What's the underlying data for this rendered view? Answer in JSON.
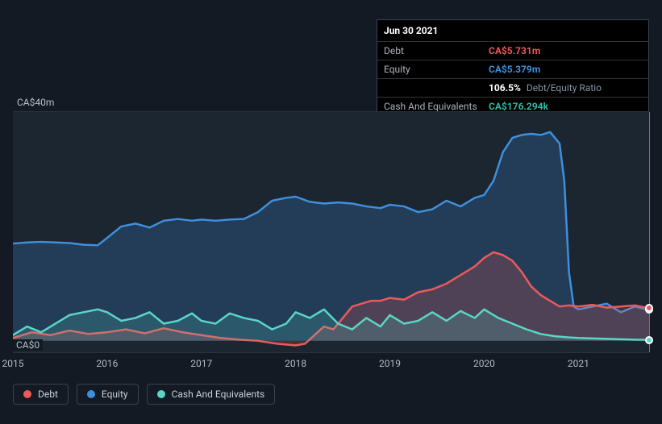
{
  "tooltip": {
    "date": "Jun 30 2021",
    "rows": [
      {
        "label": "Debt",
        "value": "CA$5.731m",
        "color": "#eb5a5a"
      },
      {
        "label": "Equity",
        "value": "CA$5.379m",
        "color": "#3f8fdd"
      },
      {
        "label": "",
        "value": "106.5%",
        "sub": "Debt/Equity Ratio",
        "color": "#ffffff"
      },
      {
        "label": "Cash And Equivalents",
        "value": "CA$176.294k",
        "color": "#2fb9a3"
      }
    ]
  },
  "chart": {
    "y_top_label": "CA$40m",
    "y_bottom_label": "CA$0",
    "x_min": 2015,
    "x_max": 2021.75,
    "y_min": -2,
    "y_max": 40,
    "x_ticks": [
      2015,
      2016,
      2017,
      2018,
      2019,
      2020,
      2021
    ],
    "plot_bg": "#1b2631",
    "series": [
      {
        "name": "Equity",
        "color": "#3f8fdd",
        "fill": "rgba(63,143,221,0.22)",
        "data": [
          [
            2015,
            17.0
          ],
          [
            2015.15,
            17.2
          ],
          [
            2015.3,
            17.3
          ],
          [
            2015.45,
            17.2
          ],
          [
            2015.6,
            17.1
          ],
          [
            2015.75,
            16.8
          ],
          [
            2015.9,
            16.7
          ],
          [
            2016,
            18.0
          ],
          [
            2016.15,
            20.0
          ],
          [
            2016.3,
            20.5
          ],
          [
            2016.45,
            19.8
          ],
          [
            2016.6,
            21.0
          ],
          [
            2016.75,
            21.3
          ],
          [
            2016.9,
            21.0
          ],
          [
            2017,
            21.2
          ],
          [
            2017.15,
            21.0
          ],
          [
            2017.3,
            21.2
          ],
          [
            2017.45,
            21.3
          ],
          [
            2017.6,
            22.5
          ],
          [
            2017.75,
            24.5
          ],
          [
            2017.9,
            25.0
          ],
          [
            2018,
            25.2
          ],
          [
            2018.15,
            24.3
          ],
          [
            2018.3,
            24.0
          ],
          [
            2018.45,
            24.2
          ],
          [
            2018.6,
            24.0
          ],
          [
            2018.75,
            23.5
          ],
          [
            2018.9,
            23.2
          ],
          [
            2019,
            23.8
          ],
          [
            2019.15,
            23.5
          ],
          [
            2019.3,
            22.5
          ],
          [
            2019.45,
            23.0
          ],
          [
            2019.6,
            24.5
          ],
          [
            2019.75,
            23.5
          ],
          [
            2019.9,
            25.0
          ],
          [
            2020,
            25.5
          ],
          [
            2020.1,
            28.0
          ],
          [
            2020.2,
            33.0
          ],
          [
            2020.3,
            35.5
          ],
          [
            2020.4,
            36.0
          ],
          [
            2020.5,
            36.2
          ],
          [
            2020.6,
            36.0
          ],
          [
            2020.7,
            36.5
          ],
          [
            2020.8,
            34.5
          ],
          [
            2020.85,
            28.0
          ],
          [
            2020.9,
            12.0
          ],
          [
            2020.95,
            6.0
          ],
          [
            2021,
            5.5
          ],
          [
            2021.15,
            6.0
          ],
          [
            2021.3,
            6.5
          ],
          [
            2021.45,
            5.0
          ],
          [
            2021.6,
            6.0
          ],
          [
            2021.75,
            5.4
          ]
        ]
      },
      {
        "name": "Debt",
        "color": "#eb5a5a",
        "fill": "rgba(235,90,90,0.22)",
        "data": [
          [
            2015,
            0.5
          ],
          [
            2015.2,
            1.5
          ],
          [
            2015.4,
            1.0
          ],
          [
            2015.6,
            1.8
          ],
          [
            2015.8,
            1.2
          ],
          [
            2016,
            1.5
          ],
          [
            2016.2,
            2.0
          ],
          [
            2016.4,
            1.3
          ],
          [
            2016.6,
            2.2
          ],
          [
            2016.8,
            1.5
          ],
          [
            2017,
            1.0
          ],
          [
            2017.2,
            0.5
          ],
          [
            2017.4,
            0.2
          ],
          [
            2017.6,
            0.0
          ],
          [
            2017.8,
            -0.5
          ],
          [
            2018,
            -0.8
          ],
          [
            2018.1,
            -0.5
          ],
          [
            2018.2,
            1.0
          ],
          [
            2018.3,
            2.5
          ],
          [
            2018.4,
            2.0
          ],
          [
            2018.5,
            4.0
          ],
          [
            2018.6,
            6.0
          ],
          [
            2018.7,
            6.5
          ],
          [
            2018.8,
            7.0
          ],
          [
            2018.9,
            7.0
          ],
          [
            2019,
            7.5
          ],
          [
            2019.15,
            7.2
          ],
          [
            2019.3,
            8.5
          ],
          [
            2019.45,
            9.0
          ],
          [
            2019.6,
            10.0
          ],
          [
            2019.75,
            11.5
          ],
          [
            2019.9,
            13.0
          ],
          [
            2020,
            14.5
          ],
          [
            2020.1,
            15.5
          ],
          [
            2020.2,
            15.0
          ],
          [
            2020.3,
            14.0
          ],
          [
            2020.4,
            12.0
          ],
          [
            2020.5,
            9.5
          ],
          [
            2020.6,
            8.0
          ],
          [
            2020.7,
            7.0
          ],
          [
            2020.8,
            6.0
          ],
          [
            2020.9,
            6.2
          ],
          [
            2021,
            6.0
          ],
          [
            2021.15,
            6.3
          ],
          [
            2021.3,
            5.8
          ],
          [
            2021.45,
            6.0
          ],
          [
            2021.6,
            6.2
          ],
          [
            2021.75,
            5.7
          ]
        ]
      },
      {
        "name": "Cash And Equivalents",
        "color": "#5ad6c6",
        "fill": "rgba(90,214,198,0.18)",
        "data": [
          [
            2015,
            1.0
          ],
          [
            2015.15,
            2.5
          ],
          [
            2015.3,
            1.5
          ],
          [
            2015.45,
            3.0
          ],
          [
            2015.6,
            4.5
          ],
          [
            2015.75,
            5.0
          ],
          [
            2015.9,
            5.5
          ],
          [
            2016,
            5.0
          ],
          [
            2016.15,
            3.5
          ],
          [
            2016.3,
            4.0
          ],
          [
            2016.45,
            5.0
          ],
          [
            2016.6,
            3.0
          ],
          [
            2016.75,
            3.5
          ],
          [
            2016.9,
            4.8
          ],
          [
            2017,
            3.5
          ],
          [
            2017.15,
            3.0
          ],
          [
            2017.3,
            4.8
          ],
          [
            2017.45,
            4.0
          ],
          [
            2017.6,
            3.5
          ],
          [
            2017.75,
            2.0
          ],
          [
            2017.9,
            3.0
          ],
          [
            2018,
            5.0
          ],
          [
            2018.15,
            4.0
          ],
          [
            2018.3,
            5.5
          ],
          [
            2018.45,
            3.0
          ],
          [
            2018.6,
            2.0
          ],
          [
            2018.75,
            4.0
          ],
          [
            2018.9,
            2.5
          ],
          [
            2019,
            4.5
          ],
          [
            2019.15,
            3.0
          ],
          [
            2019.3,
            3.5
          ],
          [
            2019.45,
            5.0
          ],
          [
            2019.6,
            3.5
          ],
          [
            2019.75,
            5.2
          ],
          [
            2019.9,
            4.0
          ],
          [
            2020,
            5.5
          ],
          [
            2020.15,
            4.0
          ],
          [
            2020.3,
            3.0
          ],
          [
            2020.45,
            2.0
          ],
          [
            2020.6,
            1.2
          ],
          [
            2020.75,
            0.8
          ],
          [
            2020.9,
            0.6
          ],
          [
            2021,
            0.5
          ],
          [
            2021.2,
            0.4
          ],
          [
            2021.4,
            0.3
          ],
          [
            2021.6,
            0.2
          ],
          [
            2021.75,
            0.18
          ]
        ]
      }
    ],
    "hover_x": 2021.75,
    "legend": [
      {
        "label": "Debt",
        "color": "#eb5a5a"
      },
      {
        "label": "Equity",
        "color": "#3f8fdd"
      },
      {
        "label": "Cash And Equivalents",
        "color": "#5ad6c6"
      }
    ]
  }
}
